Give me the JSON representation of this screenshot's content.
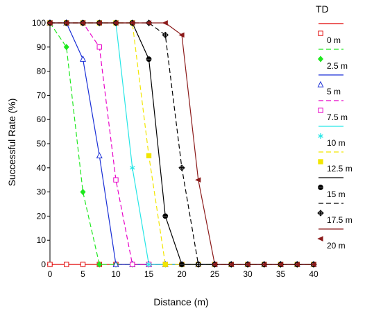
{
  "chart_data": {
    "type": "line",
    "title": "",
    "xlabel": "Distance (m)",
    "ylabel": "Successful Rate (%)",
    "xlim": [
      0,
      40
    ],
    "ylim": [
      0,
      100
    ],
    "xticks": [
      0,
      5,
      10,
      15,
      20,
      25,
      30,
      35,
      40
    ],
    "yticks": [
      0,
      10,
      20,
      30,
      40,
      50,
      60,
      70,
      80,
      90,
      100
    ],
    "grid": false,
    "legend": {
      "title": "TD",
      "placement": "right"
    },
    "x": [
      0,
      2.5,
      5,
      7.5,
      10,
      12.5,
      15,
      17.5,
      20,
      22.5,
      25,
      27.5,
      30,
      32.5,
      35,
      37.5,
      40
    ],
    "series": [
      {
        "name": "0 m",
        "color": "#e00000",
        "dash": "solid",
        "marker": "open-square",
        "values": [
          0,
          0,
          0,
          0,
          0,
          0,
          0,
          0,
          0,
          0,
          0,
          0,
          0,
          0,
          0,
          0,
          0
        ]
      },
      {
        "name": "2.5 m",
        "color": "#1ee81e",
        "dash": "dashed",
        "marker": "filled-diamond",
        "values": [
          100,
          90,
          30,
          0,
          0,
          0,
          0,
          0,
          0,
          0,
          0,
          0,
          0,
          0,
          0,
          0,
          0
        ]
      },
      {
        "name": "5 m",
        "color": "#1a2fd6",
        "dash": "solid",
        "marker": "open-triangle",
        "values": [
          100,
          100,
          85,
          45,
          0,
          0,
          0,
          0,
          0,
          0,
          0,
          0,
          0,
          0,
          0,
          0,
          0
        ]
      },
      {
        "name": "7.5 m",
        "color": "#e800c8",
        "dash": "dashed",
        "marker": "open-square",
        "values": [
          100,
          100,
          100,
          90,
          35,
          0,
          0,
          0,
          0,
          0,
          0,
          0,
          0,
          0,
          0,
          0,
          0
        ]
      },
      {
        "name": "10 m",
        "color": "#26e6e6",
        "dash": "solid",
        "marker": "asterisk",
        "values": [
          100,
          100,
          100,
          100,
          100,
          40,
          0,
          0,
          0,
          0,
          0,
          0,
          0,
          0,
          0,
          0,
          0
        ]
      },
      {
        "name": "12.5 m",
        "color": "#f2e600",
        "dash": "dashed",
        "marker": "filled-square",
        "values": [
          100,
          100,
          100,
          100,
          100,
          100,
          45,
          0,
          0,
          0,
          0,
          0,
          0,
          0,
          0,
          0,
          0
        ]
      },
      {
        "name": "15 m",
        "color": "#000000",
        "dash": "solid",
        "marker": "filled-circle",
        "values": [
          100,
          100,
          100,
          100,
          100,
          100,
          85,
          20,
          0,
          0,
          0,
          0,
          0,
          0,
          0,
          0,
          0
        ]
      },
      {
        "name": "17.5 m",
        "color": "#000000",
        "dash": "dashed",
        "marker": "diamond-cross",
        "values": [
          100,
          100,
          100,
          100,
          100,
          100,
          100,
          95,
          40,
          0,
          0,
          0,
          0,
          0,
          0,
          0,
          0
        ]
      },
      {
        "name": "20 m",
        "color": "#8b1a1a",
        "dash": "solid",
        "marker": "filled-triangle-left",
        "values": [
          100,
          100,
          100,
          100,
          100,
          100,
          100,
          100,
          95,
          35,
          0,
          0,
          0,
          0,
          0,
          0,
          0
        ]
      }
    ]
  }
}
